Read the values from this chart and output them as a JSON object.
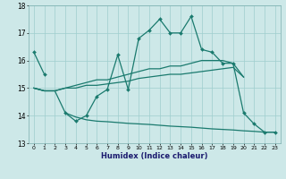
{
  "xlabel": "Humidex (Indice chaleur)",
  "x": [
    0,
    1,
    2,
    3,
    4,
    5,
    6,
    7,
    8,
    9,
    10,
    11,
    12,
    13,
    14,
    15,
    16,
    17,
    18,
    19,
    20,
    21,
    22,
    23
  ],
  "line_main": [
    16.3,
    15.5,
    null,
    14.1,
    13.8,
    14.0,
    14.7,
    14.95,
    16.2,
    14.95,
    16.8,
    17.1,
    17.5,
    17.0,
    17.0,
    17.6,
    16.4,
    16.3,
    15.9,
    15.9,
    14.1,
    13.7,
    13.4,
    13.4
  ],
  "line_upper": [
    15.0,
    14.9,
    14.9,
    15.0,
    15.1,
    15.2,
    15.3,
    15.3,
    15.4,
    15.5,
    15.6,
    15.7,
    15.7,
    15.8,
    15.8,
    15.9,
    16.0,
    16.0,
    16.0,
    15.9,
    15.4,
    null,
    null,
    null
  ],
  "line_mid": [
    15.0,
    14.9,
    14.9,
    15.0,
    15.0,
    15.1,
    15.1,
    15.15,
    15.2,
    15.25,
    15.35,
    15.4,
    15.45,
    15.5,
    15.5,
    15.55,
    15.6,
    15.65,
    15.7,
    15.75,
    15.4,
    null,
    null,
    null
  ],
  "line_lower": [
    15.0,
    14.9,
    14.9,
    14.1,
    13.95,
    13.85,
    13.8,
    13.78,
    13.75,
    13.72,
    13.7,
    13.68,
    13.65,
    13.62,
    13.6,
    13.58,
    13.55,
    13.52,
    13.5,
    13.48,
    13.45,
    13.43,
    13.4,
    13.4
  ],
  "color": "#1a7a6e",
  "bg_color": "#cde8e8",
  "grid_color": "#9ecece",
  "ylim": [
    13,
    18
  ],
  "yticks": [
    13,
    14,
    15,
    16,
    17,
    18
  ]
}
